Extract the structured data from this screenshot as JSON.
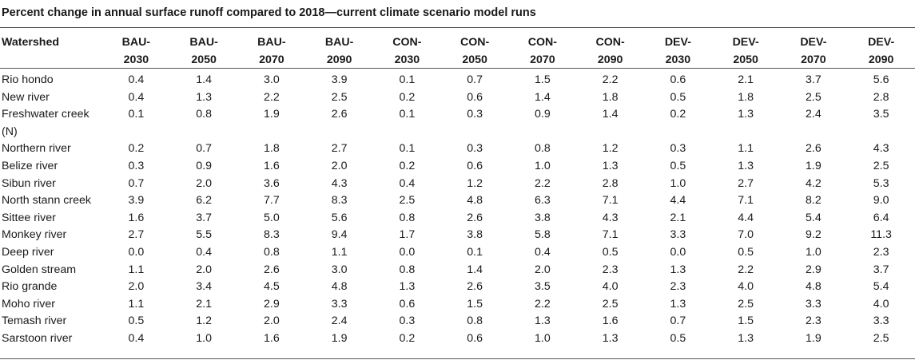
{
  "title": "Percent change in annual surface runoff compared to 2018—current climate scenario model runs",
  "columns": [
    {
      "line1": "Watershed",
      "line2": ""
    },
    {
      "line1": "BAU-",
      "line2": "2030"
    },
    {
      "line1": "BAU-",
      "line2": "2050"
    },
    {
      "line1": "BAU-",
      "line2": "2070"
    },
    {
      "line1": "BAU-",
      "line2": "2090"
    },
    {
      "line1": "CON-",
      "line2": "2030"
    },
    {
      "line1": "CON-",
      "line2": "2050"
    },
    {
      "line1": "CON-",
      "line2": "2070"
    },
    {
      "line1": "CON-",
      "line2": "2090"
    },
    {
      "line1": "DEV-",
      "line2": "2030"
    },
    {
      "line1": "DEV-",
      "line2": "2050"
    },
    {
      "line1": "DEV-",
      "line2": "2070"
    },
    {
      "line1": "DEV-",
      "line2": "2090"
    }
  ],
  "rows": [
    {
      "watershed": "Rio hondo",
      "values": [
        "0.4",
        "1.4",
        "3.0",
        "3.9",
        "0.1",
        "0.7",
        "1.5",
        "2.2",
        "0.6",
        "2.1",
        "3.7",
        "5.6"
      ]
    },
    {
      "watershed": "New river",
      "values": [
        "0.4",
        "1.3",
        "2.2",
        "2.5",
        "0.2",
        "0.6",
        "1.4",
        "1.8",
        "0.5",
        "1.8",
        "2.5",
        "2.8"
      ]
    },
    {
      "watershed": "Freshwater creek (N)",
      "values": [
        "0.1",
        "0.8",
        "1.9",
        "2.6",
        "0.1",
        "0.3",
        "0.9",
        "1.4",
        "0.2",
        "1.3",
        "2.4",
        "3.5"
      ]
    },
    {
      "watershed": "Northern river",
      "values": [
        "0.2",
        "0.7",
        "1.8",
        "2.7",
        "0.1",
        "0.3",
        "0.8",
        "1.2",
        "0.3",
        "1.1",
        "2.6",
        "4.3"
      ]
    },
    {
      "watershed": "Belize river",
      "values": [
        "0.3",
        "0.9",
        "1.6",
        "2.0",
        "0.2",
        "0.6",
        "1.0",
        "1.3",
        "0.5",
        "1.3",
        "1.9",
        "2.5"
      ]
    },
    {
      "watershed": "Sibun river",
      "values": [
        "0.7",
        "2.0",
        "3.6",
        "4.3",
        "0.4",
        "1.2",
        "2.2",
        "2.8",
        "1.0",
        "2.7",
        "4.2",
        "5.3"
      ]
    },
    {
      "watershed": "North stann creek",
      "values": [
        "3.9",
        "6.2",
        "7.7",
        "8.3",
        "2.5",
        "4.8",
        "6.3",
        "7.1",
        "4.4",
        "7.1",
        "8.2",
        "9.0"
      ]
    },
    {
      "watershed": "Sittee river",
      "values": [
        "1.6",
        "3.7",
        "5.0",
        "5.6",
        "0.8",
        "2.6",
        "3.8",
        "4.3",
        "2.1",
        "4.4",
        "5.4",
        "6.4"
      ]
    },
    {
      "watershed": "Monkey river",
      "values": [
        "2.7",
        "5.5",
        "8.3",
        "9.4",
        "1.7",
        "3.8",
        "5.8",
        "7.1",
        "3.3",
        "7.0",
        "9.2",
        "11.3"
      ]
    },
    {
      "watershed": "Deep river",
      "values": [
        "0.0",
        "0.4",
        "0.8",
        "1.1",
        "0.0",
        "0.1",
        "0.4",
        "0.5",
        "0.0",
        "0.5",
        "1.0",
        "2.3"
      ]
    },
    {
      "watershed": "Golden stream",
      "values": [
        "1.1",
        "2.0",
        "2.6",
        "3.0",
        "0.8",
        "1.4",
        "2.0",
        "2.3",
        "1.3",
        "2.2",
        "2.9",
        "3.7"
      ]
    },
    {
      "watershed": "Rio grande",
      "values": [
        "2.0",
        "3.4",
        "4.5",
        "4.8",
        "1.3",
        "2.6",
        "3.5",
        "4.0",
        "2.3",
        "4.0",
        "4.8",
        "5.4"
      ]
    },
    {
      "watershed": "Moho river",
      "values": [
        "1.1",
        "2.1",
        "2.9",
        "3.3",
        "0.6",
        "1.5",
        "2.2",
        "2.5",
        "1.3",
        "2.5",
        "3.3",
        "4.0"
      ]
    },
    {
      "watershed": "Temash river",
      "values": [
        "0.5",
        "1.2",
        "2.0",
        "2.4",
        "0.3",
        "0.8",
        "1.3",
        "1.6",
        "0.7",
        "1.5",
        "2.3",
        "3.3"
      ]
    },
    {
      "watershed": "Sarstoon river",
      "values": [
        "0.4",
        "1.0",
        "1.6",
        "1.9",
        "0.2",
        "0.6",
        "1.0",
        "1.3",
        "0.5",
        "1.3",
        "1.9",
        "2.5"
      ]
    }
  ]
}
